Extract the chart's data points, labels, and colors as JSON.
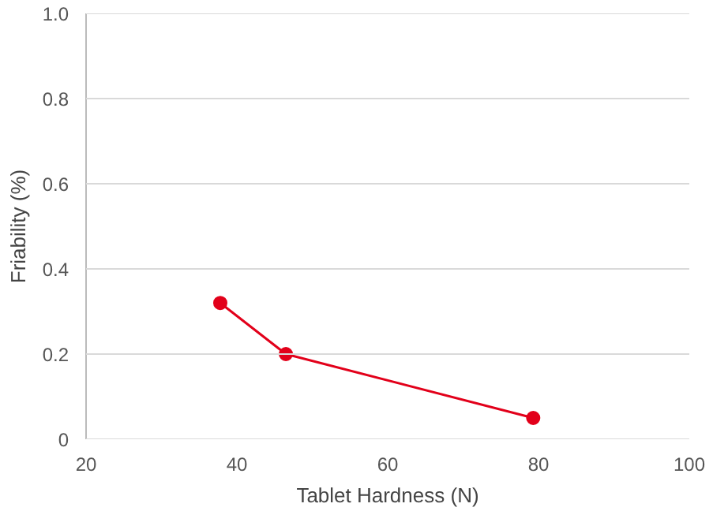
{
  "chart_data": {
    "type": "line",
    "xlabel": "Tablet Hardness (N)",
    "ylabel": "Friability (%)",
    "x": [
      37.8,
      46.5,
      79.3
    ],
    "series": [
      {
        "color": "#e2001a",
        "values": [
          0.32,
          0.2,
          0.05
        ]
      }
    ],
    "xlim": [
      20,
      100
    ],
    "xticks": [
      20,
      40,
      60,
      80,
      100
    ],
    "ylim": [
      0,
      1.0
    ],
    "yticks": [
      {
        "value": 0,
        "label": "0"
      },
      0.2,
      0.4,
      0.6,
      0.8,
      {
        "value": 1.0,
        "label": "1.0"
      }
    ],
    "grid": "y",
    "marker": "circle"
  }
}
